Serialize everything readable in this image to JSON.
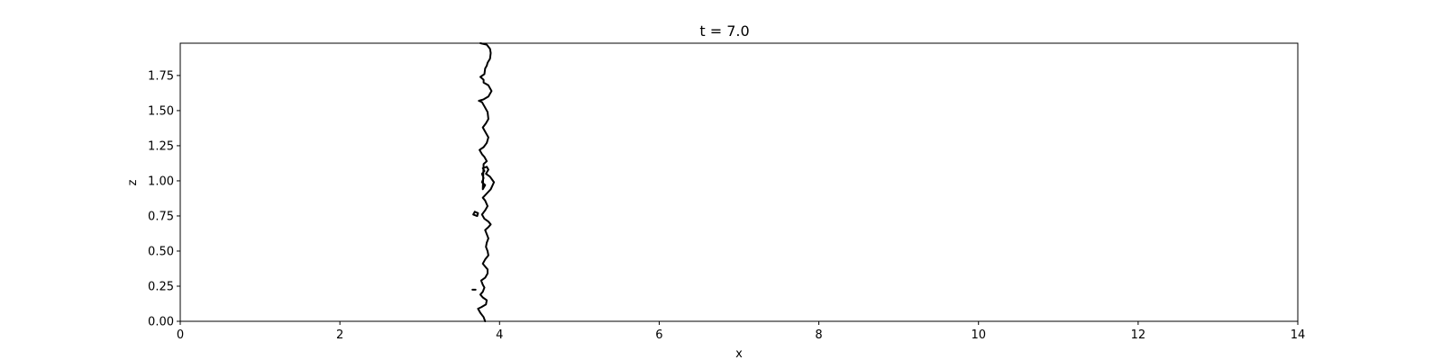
{
  "chart_data": {
    "type": "line",
    "title": "t = 7.0",
    "xlabel": "x",
    "ylabel": "z",
    "xlim": [
      0,
      14
    ],
    "ylim": [
      0,
      1.98
    ],
    "xticks": [
      0,
      2,
      4,
      6,
      8,
      10,
      12,
      14
    ],
    "xtick_labels": [
      "0",
      "2",
      "4",
      "6",
      "8",
      "10",
      "12",
      "14"
    ],
    "yticks": [
      0,
      0.25,
      0.5,
      0.75,
      1.0,
      1.25,
      1.5,
      1.75
    ],
    "ytick_labels": [
      "0.00",
      "0.25",
      "0.50",
      "0.75",
      "1.00",
      "1.25",
      "1.50",
      "1.75"
    ],
    "grid": false,
    "line_color": "#000000",
    "series": [
      {
        "points": [
          [
            3.82,
            0.0
          ],
          [
            3.8,
            0.03
          ],
          [
            3.76,
            0.06
          ],
          [
            3.73,
            0.09
          ],
          [
            3.77,
            0.1
          ],
          [
            3.83,
            0.12
          ],
          [
            3.84,
            0.15
          ],
          [
            3.79,
            0.17
          ],
          [
            3.76,
            0.19
          ],
          [
            3.79,
            0.21
          ],
          [
            3.81,
            0.24
          ],
          [
            3.79,
            0.26
          ],
          [
            3.77,
            0.29
          ],
          [
            3.82,
            0.31
          ],
          [
            3.85,
            0.34
          ],
          [
            3.85,
            0.37
          ],
          [
            3.82,
            0.39
          ],
          [
            3.79,
            0.41
          ],
          [
            3.82,
            0.44
          ],
          [
            3.86,
            0.47
          ],
          [
            3.85,
            0.5
          ],
          [
            3.83,
            0.53
          ],
          [
            3.84,
            0.56
          ],
          [
            3.86,
            0.59
          ],
          [
            3.84,
            0.62
          ],
          [
            3.82,
            0.65
          ],
          [
            3.86,
            0.67
          ],
          [
            3.89,
            0.69
          ],
          [
            3.86,
            0.71
          ],
          [
            3.81,
            0.73
          ],
          [
            3.78,
            0.76
          ],
          [
            3.82,
            0.79
          ],
          [
            3.85,
            0.82
          ],
          [
            3.82,
            0.86
          ],
          [
            3.79,
            0.88
          ],
          [
            3.84,
            0.91
          ],
          [
            3.89,
            0.94
          ],
          [
            3.93,
            0.99
          ],
          [
            3.88,
            1.03
          ],
          [
            3.83,
            1.05
          ],
          [
            3.86,
            1.08
          ],
          [
            3.84,
            1.1
          ],
          [
            3.79,
            1.09
          ],
          [
            3.81,
            1.07
          ],
          [
            3.78,
            1.05
          ],
          [
            3.8,
            1.02
          ],
          [
            3.78,
            0.99
          ],
          [
            3.82,
            0.97
          ],
          [
            3.79,
            0.94
          ],
          [
            3.8,
            1.12
          ],
          [
            3.84,
            1.14
          ],
          [
            3.81,
            1.17
          ],
          [
            3.78,
            1.19
          ],
          [
            3.75,
            1.22
          ],
          [
            3.8,
            1.24
          ],
          [
            3.84,
            1.27
          ],
          [
            3.86,
            1.31
          ],
          [
            3.82,
            1.35
          ],
          [
            3.79,
            1.38
          ],
          [
            3.83,
            1.41
          ],
          [
            3.86,
            1.44
          ],
          [
            3.85,
            1.49
          ],
          [
            3.81,
            1.53
          ],
          [
            3.78,
            1.56
          ],
          [
            3.74,
            1.57
          ],
          [
            3.8,
            1.58
          ],
          [
            3.86,
            1.6
          ],
          [
            3.9,
            1.64
          ],
          [
            3.86,
            1.68
          ],
          [
            3.8,
            1.7
          ],
          [
            3.8,
            1.72
          ],
          [
            3.76,
            1.74
          ],
          [
            3.81,
            1.76
          ],
          [
            3.82,
            1.8
          ],
          [
            3.84,
            1.82
          ],
          [
            3.85,
            1.84
          ],
          [
            3.88,
            1.87
          ],
          [
            3.89,
            1.91
          ],
          [
            3.88,
            1.94
          ],
          [
            3.84,
            1.97
          ],
          [
            3.76,
            1.98
          ]
        ]
      },
      {
        "points": [
          [
            3.69,
            0.78
          ],
          [
            3.73,
            0.77
          ],
          [
            3.72,
            0.75
          ],
          [
            3.67,
            0.76
          ],
          [
            3.69,
            0.78
          ]
        ]
      },
      {
        "points": [
          [
            3.66,
            0.225
          ],
          [
            3.7,
            0.225
          ]
        ]
      }
    ]
  }
}
